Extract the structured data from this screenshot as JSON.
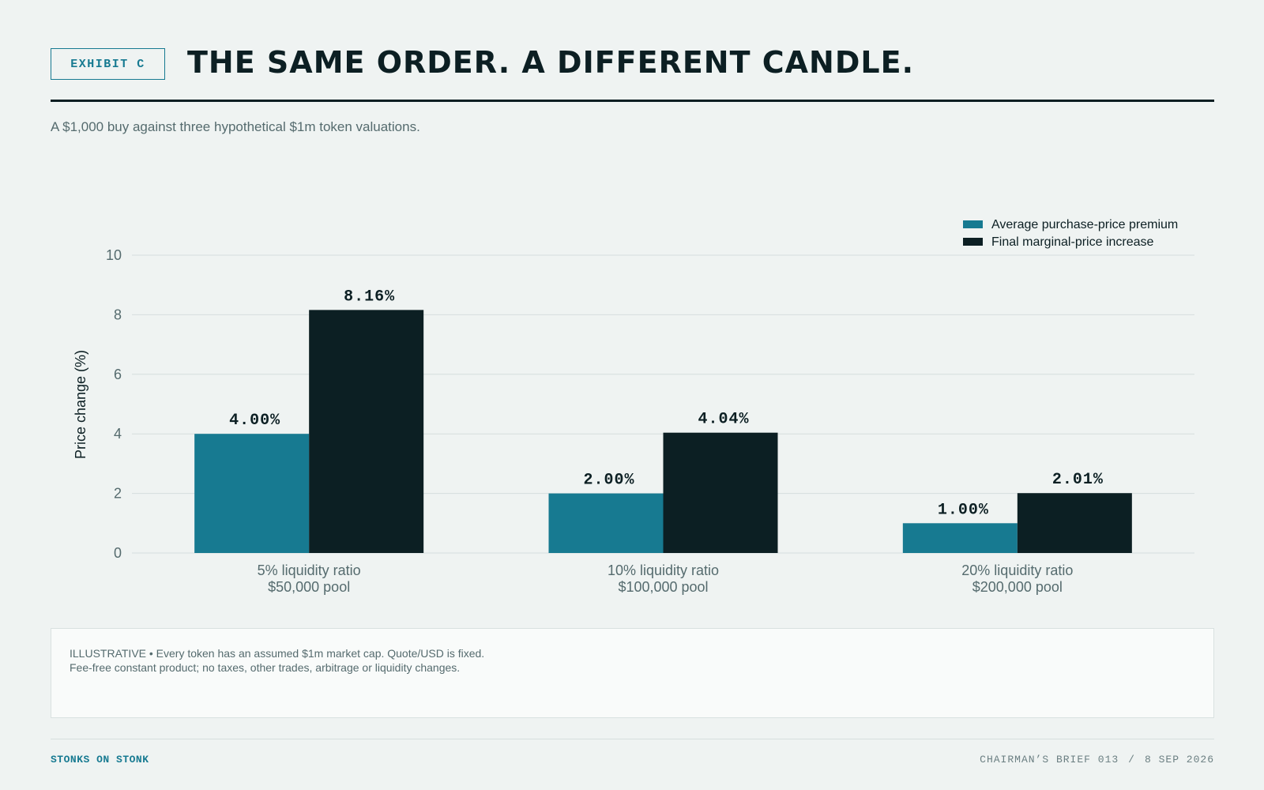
{
  "header": {
    "exhibit": "EXHIBIT C",
    "title": "THE SAME ORDER. A DIFFERENT CANDLE.",
    "subtitle": "A $1,000 buy against three hypothetical $1m token valuations."
  },
  "colors": {
    "teal": "#177a91",
    "ink": "#0c1f23",
    "muted": "#556b6e",
    "grid": "#d6dedd",
    "background": "#eff3f2"
  },
  "chart_data": {
    "type": "bar",
    "categories": [
      [
        "5% liquidity ratio",
        "$50,000 pool"
      ],
      [
        "10% liquidity ratio",
        "$100,000 pool"
      ],
      [
        "20% liquidity ratio",
        "$200,000 pool"
      ]
    ],
    "series": [
      {
        "name": "Average purchase-price premium",
        "color": "#177a91",
        "values": [
          4.0,
          2.0,
          1.0
        ],
        "labels": [
          "4.00%",
          "2.00%",
          "1.00%"
        ]
      },
      {
        "name": "Final marginal-price increase",
        "color": "#0c1f23",
        "values": [
          8.16,
          4.04,
          2.01
        ],
        "labels": [
          "8.16%",
          "4.04%",
          "2.01%"
        ]
      }
    ],
    "ylabel": "Price change (%)",
    "xlabel": "",
    "ylim": [
      0,
      10
    ],
    "yticks": [
      0,
      2,
      4,
      6,
      8,
      10
    ],
    "grid": true,
    "legend_position": "top-right"
  },
  "note": {
    "line1": "ILLUSTRATIVE • Every token has an assumed $1m market cap. Quote/USD is fixed.",
    "line2": "Fee-free constant product; no taxes, other trades, arbitrage or liquidity changes."
  },
  "footer": {
    "brand": "STONKS ON STONK",
    "brief": "CHAIRMAN’S BRIEF 013",
    "separator": "/",
    "date": "8 SEP 2026"
  }
}
